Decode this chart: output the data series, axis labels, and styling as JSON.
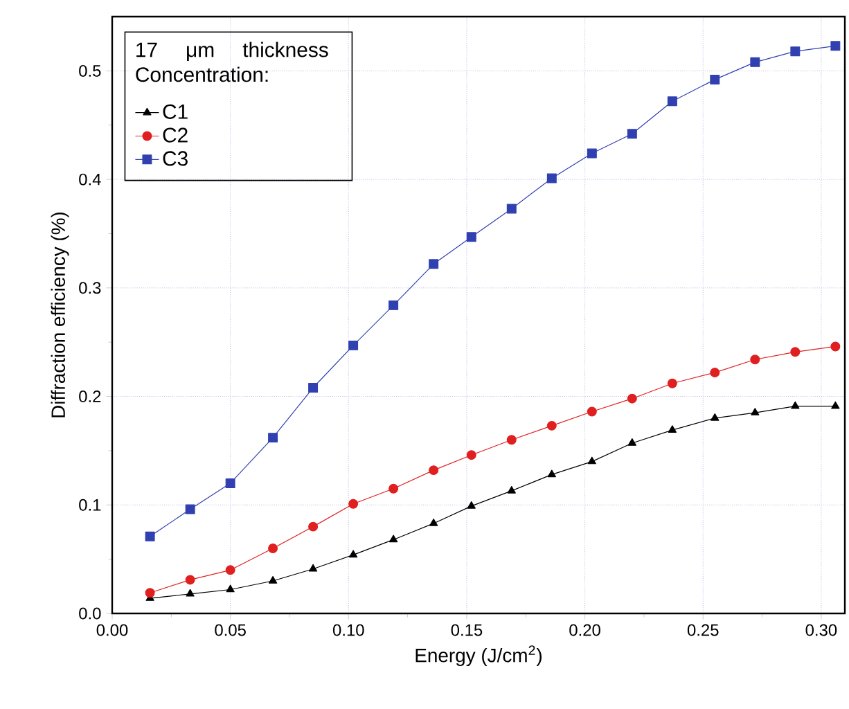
{
  "chart_data": {
    "type": "line",
    "xlabel": "Energy (J/cm$^{2}$)",
    "ylabel": "Diffraction efficiency (%)",
    "legend_title": "17 μm thickness Concentration:",
    "x": [
      0.016,
      0.033,
      0.05,
      0.068,
      0.085,
      0.102,
      0.119,
      0.136,
      0.152,
      0.169,
      0.186,
      0.203,
      0.22,
      0.237,
      0.255,
      0.272,
      0.289,
      0.306
    ],
    "series": [
      {
        "name": "C1",
        "color": "#000000",
        "marker": "triangle",
        "values": [
          0.014,
          0.018,
          0.022,
          0.03,
          0.041,
          0.054,
          0.068,
          0.083,
          0.099,
          0.113,
          0.128,
          0.14,
          0.157,
          0.169,
          0.18,
          0.185,
          0.191,
          0.191
        ]
      },
      {
        "name": "C2",
        "color": "#e02020",
        "marker": "circle",
        "values": [
          0.019,
          0.031,
          0.04,
          0.06,
          0.08,
          0.101,
          0.115,
          0.132,
          0.146,
          0.16,
          0.173,
          0.186,
          0.198,
          0.212,
          0.222,
          0.234,
          0.241,
          0.246
        ]
      },
      {
        "name": "C3",
        "color": "#3040b0",
        "marker": "square",
        "values": [
          0.071,
          0.096,
          0.12,
          0.162,
          0.208,
          0.247,
          0.284,
          0.322,
          0.347,
          0.373,
          0.401,
          0.424,
          0.442,
          0.472,
          0.492,
          0.508,
          0.518,
          0.523
        ]
      }
    ],
    "xlim": [
      0,
      0.31
    ],
    "ylim": [
      0,
      0.55
    ],
    "xticks": [
      {
        "value": 0,
        "label": "0.00"
      },
      {
        "value": 0.05,
        "label": "0.05"
      },
      {
        "value": 0.1,
        "label": "0.10"
      },
      {
        "value": 0.15,
        "label": "0.15"
      },
      {
        "value": 0.2,
        "label": "0.20"
      },
      {
        "value": 0.25,
        "label": "0.25"
      },
      {
        "value": 0.3,
        "label": "0.30"
      }
    ],
    "yticks": [
      {
        "value": 0,
        "label": "0.0"
      },
      {
        "value": 0.1,
        "label": "0.1"
      },
      {
        "value": 0.2,
        "label": "0.2"
      },
      {
        "value": 0.3,
        "label": "0.3"
      },
      {
        "value": 0.4,
        "label": "0.4"
      },
      {
        "value": 0.5,
        "label": "0.5"
      }
    ],
    "grid": true,
    "legend": "top left",
    "line_style": "solid"
  }
}
